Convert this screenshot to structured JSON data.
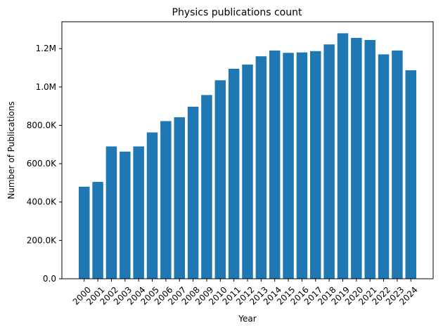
{
  "chart_data": {
    "type": "bar",
    "title": "Physics publications count",
    "xlabel": "Year",
    "ylabel": "Number of Publications",
    "categories": [
      "2000",
      "2001",
      "2002",
      "2003",
      "2004",
      "2005",
      "2006",
      "2007",
      "2008",
      "2009",
      "2010",
      "2011",
      "2012",
      "2013",
      "2014",
      "2015",
      "2016",
      "2017",
      "2018",
      "2019",
      "2020",
      "2021",
      "2022",
      "2023",
      "2024"
    ],
    "values": [
      480000,
      505000,
      690000,
      663000,
      690000,
      763000,
      822000,
      842000,
      897000,
      958000,
      1035000,
      1095000,
      1117000,
      1160000,
      1190000,
      1178000,
      1180000,
      1187000,
      1222000,
      1280000,
      1256000,
      1245000,
      1170000,
      1190000,
      1087000
    ],
    "ylim": [
      0,
      1340000
    ],
    "yticks": [
      0,
      200000,
      400000,
      600000,
      800000,
      1000000,
      1200000
    ],
    "ytick_labels": [
      "0.0",
      "200.0K",
      "400.0K",
      "600.0K",
      "800.0K",
      "1.0M",
      "1.2M"
    ],
    "bar_color": "#1f77b4",
    "grid": false,
    "legend": "none"
  }
}
